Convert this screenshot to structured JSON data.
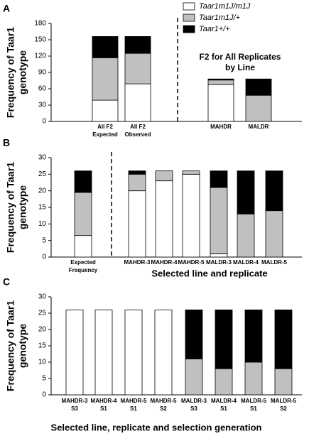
{
  "chart_data": [
    {
      "type": "bar",
      "panel": "A",
      "y_label": [
        "Frequency of Taar1",
        "genotype"
      ],
      "annotation": [
        "F2 for All Replicates",
        "by Line"
      ],
      "categories": [
        [
          "All F2",
          "Expected"
        ],
        [
          "All F2",
          "Observed"
        ],
        [
          "MAHDR"
        ],
        [
          "MALDR"
        ]
      ],
      "series": [
        {
          "name": "Taar1m1J/m1J",
          "color": "#ffffff",
          "values": [
            39,
            69,
            68,
            0
          ]
        },
        {
          "name": "Taar1m1J/+",
          "color": "#c0c0c0",
          "values": [
            78,
            56,
            8,
            48
          ]
        },
        {
          "name": "Taar1+/+",
          "color": "#000000",
          "values": [
            39,
            31,
            2,
            30
          ]
        }
      ],
      "ylim": [
        0,
        180
      ],
      "yticks": [
        0,
        30,
        60,
        90,
        120,
        150,
        180
      ]
    },
    {
      "type": "bar",
      "panel": "B",
      "y_label": [
        "Frequency of Taar1",
        "genotype"
      ],
      "x_label": "Selected line and replicate",
      "categories": [
        [
          "Expected",
          "Frequency"
        ],
        [
          "MAHDR-3"
        ],
        [
          "MAHDR-4"
        ],
        [
          "MAHDR-5"
        ],
        [
          "MALDR-3"
        ],
        [
          "MALDR-4"
        ],
        [
          "MALDR-5"
        ]
      ],
      "series": [
        {
          "name": "Taar1m1J/m1J",
          "color": "#ffffff",
          "values": [
            6.5,
            20,
            23,
            25,
            1,
            0,
            0
          ]
        },
        {
          "name": "Taar1m1J/+",
          "color": "#c0c0c0",
          "values": [
            13,
            5,
            3,
            1,
            20,
            13,
            14
          ]
        },
        {
          "name": "Taar1+/+",
          "color": "#000000",
          "values": [
            6.5,
            1,
            0,
            0,
            5,
            13,
            12
          ]
        }
      ],
      "ylim": [
        0,
        30
      ],
      "yticks": [
        0,
        5,
        10,
        15,
        20,
        25,
        30
      ]
    },
    {
      "type": "bar",
      "panel": "C",
      "y_label": [
        "Frequency of Taar1",
        "genotype"
      ],
      "x_label": "Selected line, replicate and selection generation",
      "categories": [
        [
          "MAHDR-3",
          "S3"
        ],
        [
          "MAHDR-4",
          "S1"
        ],
        [
          "MAHDR-5",
          "S1"
        ],
        [
          "MAHDR-5",
          "S2"
        ],
        [
          "MALDR-3",
          "S3"
        ],
        [
          "MALDR-4",
          "S1"
        ],
        [
          "MALDR-5",
          "S1"
        ],
        [
          "MALDR-5",
          "S2"
        ]
      ],
      "series": [
        {
          "name": "Taar1m1J/m1J",
          "color": "#ffffff",
          "values": [
            26,
            26,
            26,
            26,
            0,
            0,
            0,
            0
          ]
        },
        {
          "name": "Taar1m1J/+",
          "color": "#c0c0c0",
          "values": [
            0,
            0,
            0,
            0,
            11,
            8,
            10,
            8
          ]
        },
        {
          "name": "Taar1+/+",
          "color": "#000000",
          "values": [
            0,
            0,
            0,
            0,
            15,
            18,
            16,
            18
          ]
        }
      ],
      "ylim": [
        0,
        30
      ],
      "yticks": [
        0,
        5,
        10,
        15,
        20,
        25,
        30
      ]
    }
  ]
}
